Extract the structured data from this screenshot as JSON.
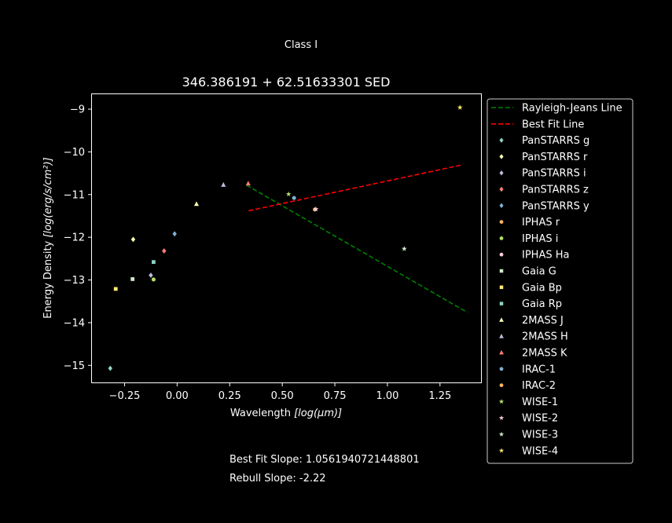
{
  "figure": {
    "suptitle": "Class I",
    "title": "346.386191 + 62.51633301 SED",
    "xlabel_main": "Wavelength ",
    "xlabel_math": "[log(μm)]",
    "ylabel_main": "Energy Density ",
    "ylabel_math": "[log(erg/s/cm²)]",
    "footer_best_fit": "Best Fit Slope: 1.0561940721448801",
    "footer_rebull": "Rebull Slope: -2.22"
  },
  "chart_data": {
    "type": "scatter",
    "xlim": [
      -0.405,
      1.445
    ],
    "ylim": [
      -15.4,
      -8.65
    ],
    "xticks": [
      -0.25,
      0.0,
      0.25,
      0.5,
      0.75,
      1.0,
      1.25
    ],
    "xtick_labels": [
      "−0.25",
      "0.00",
      "0.25",
      "0.50",
      "0.75",
      "1.00",
      "1.25"
    ],
    "yticks": [
      -15,
      -14,
      -13,
      -12,
      -11,
      -10,
      -9
    ],
    "ytick_labels": [
      "−15",
      "−14",
      "−13",
      "−12",
      "−11",
      "−10",
      "−9"
    ],
    "grid": false,
    "legend_placement": "outside-right",
    "lines": [
      {
        "name": "Rayleigh-Jeans Line",
        "color": "#008000",
        "dash": true,
        "x": [
          0.33,
          1.38
        ],
        "y": [
          -10.78,
          -13.76
        ]
      },
      {
        "name": "Best Fit Line",
        "color": "#ff0000",
        "dash": true,
        "x": [
          0.34,
          1.35
        ],
        "y": [
          -11.38,
          -10.31
        ]
      }
    ],
    "series": [
      {
        "name": "PanSTARRS g",
        "color": "#8dd3c7",
        "marker": "diamond",
        "x": [
          -0.318
        ],
        "y": [
          -15.07
        ]
      },
      {
        "name": "PanSTARRS r",
        "color": "#ffffb3",
        "marker": "diamond",
        "x": [
          -0.209
        ],
        "y": [
          -12.05
        ]
      },
      {
        "name": "PanSTARRS i",
        "color": "#bebada",
        "marker": "diamond",
        "x": [
          -0.125
        ],
        "y": [
          -12.89
        ]
      },
      {
        "name": "PanSTARRS z",
        "color": "#fb8072",
        "marker": "diamond",
        "x": [
          -0.062
        ],
        "y": [
          -12.32
        ]
      },
      {
        "name": "PanSTARRS y",
        "color": "#80b1d3",
        "marker": "diamond",
        "x": [
          -0.012
        ],
        "y": [
          -11.92
        ]
      },
      {
        "name": "IPHAS r",
        "color": "#fdb462",
        "marker": "circle",
        "x": [],
        "y": []
      },
      {
        "name": "IPHAS i",
        "color": "#b3de69",
        "marker": "circle",
        "x": [
          -0.112
        ],
        "y": [
          -12.99
        ]
      },
      {
        "name": "IPHAS Ha",
        "color": "#fccde5",
        "marker": "circle",
        "x": [],
        "y": []
      },
      {
        "name": "Gaia G",
        "color": "#ccebc5",
        "marker": "square",
        "x": [
          -0.212
        ],
        "y": [
          -12.98
        ]
      },
      {
        "name": "Gaia Bp",
        "color": "#ffed6f",
        "marker": "square",
        "x": [
          -0.292
        ],
        "y": [
          -13.21
        ]
      },
      {
        "name": "Gaia Rp",
        "color": "#8dd3c7",
        "marker": "square",
        "x": [
          -0.112
        ],
        "y": [
          -12.58
        ]
      },
      {
        "name": "2MASS J",
        "color": "#ffffb3",
        "marker": "triangle",
        "x": [
          0.092
        ],
        "y": [
          -11.22
        ]
      },
      {
        "name": "2MASS H",
        "color": "#bebada",
        "marker": "triangle",
        "x": [
          0.22
        ],
        "y": [
          -10.77
        ]
      },
      {
        "name": "2MASS K",
        "color": "#fb8072",
        "marker": "triangle",
        "x": [
          0.338
        ],
        "y": [
          -10.74
        ]
      },
      {
        "name": "IRAC-1",
        "color": "#80b1d3",
        "marker": "circle",
        "x": [
          0.556
        ],
        "y": [
          -11.08
        ]
      },
      {
        "name": "IRAC-2",
        "color": "#fdb462",
        "marker": "circle",
        "x": [
          0.655
        ],
        "y": [
          -11.35
        ]
      },
      {
        "name": "WISE-1",
        "color": "#b3de69",
        "marker": "star",
        "x": [
          0.53
        ],
        "y": [
          -10.99
        ]
      },
      {
        "name": "WISE-2",
        "color": "#fccde5",
        "marker": "star",
        "x": [
          0.66
        ],
        "y": [
          -11.34
        ]
      },
      {
        "name": "WISE-3",
        "color": "#ccebc5",
        "marker": "star",
        "x": [
          1.08
        ],
        "y": [
          -12.27
        ]
      },
      {
        "name": "WISE-4",
        "color": "#ffed6f",
        "marker": "star",
        "x": [
          1.345
        ],
        "y": [
          -8.96
        ]
      }
    ]
  }
}
